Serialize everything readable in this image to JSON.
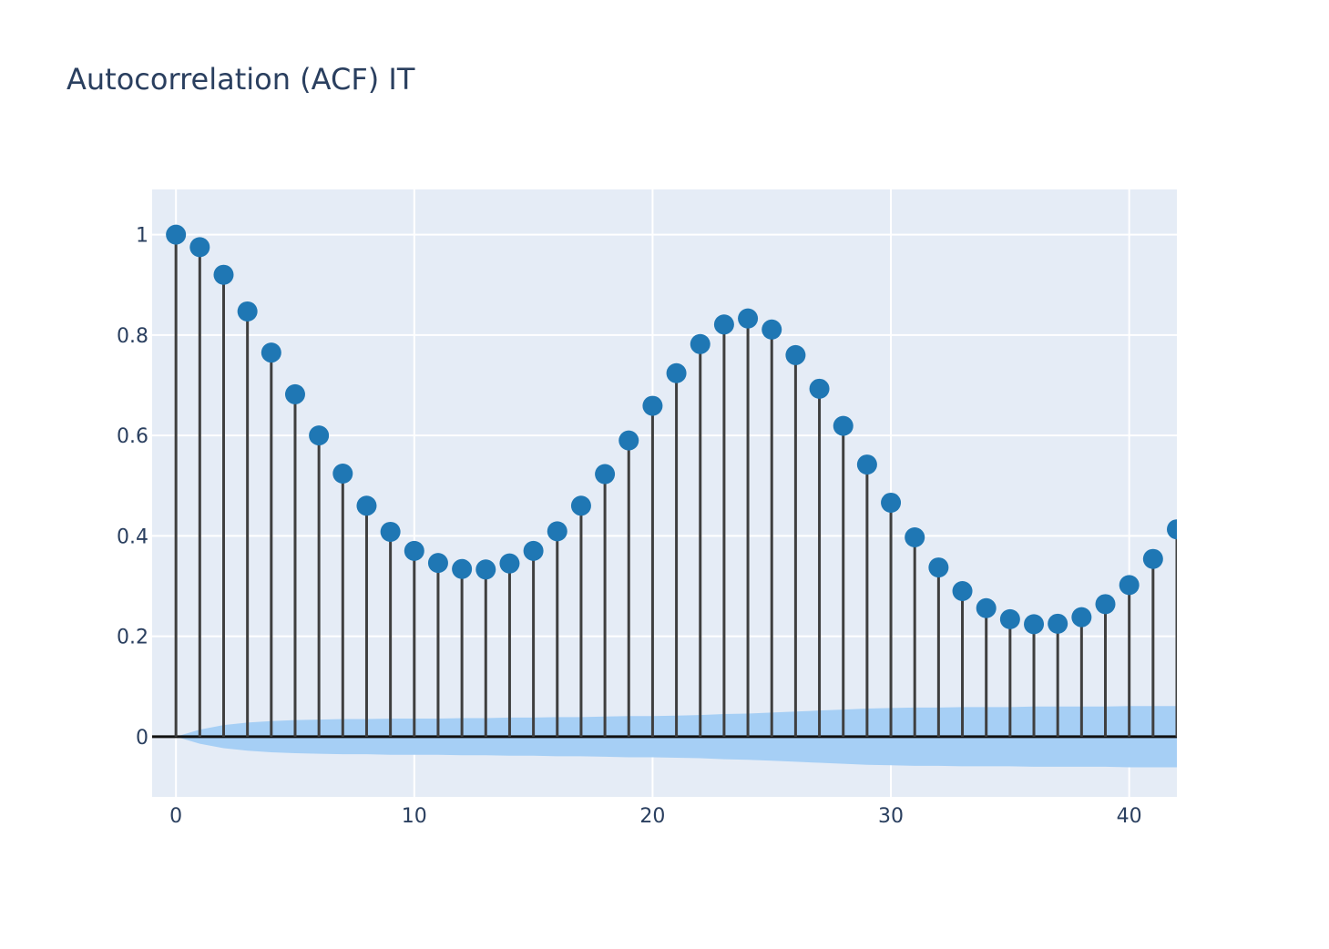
{
  "chart_data": {
    "type": "scatter",
    "title": "Autocorrelation (ACF) IT",
    "xlabel": "",
    "ylabel": "",
    "xlim": [
      -1,
      42
    ],
    "ylim": [
      -0.12,
      1.09
    ],
    "x_ticks": [
      0,
      10,
      20,
      30,
      40
    ],
    "y_ticks": [
      0,
      0.2,
      0.4,
      0.6,
      0.8,
      1
    ],
    "grid": true,
    "legend": "none",
    "lags": [
      0,
      1,
      2,
      3,
      4,
      5,
      6,
      7,
      8,
      9,
      10,
      11,
      12,
      13,
      14,
      15,
      16,
      17,
      18,
      19,
      20,
      21,
      22,
      23,
      24,
      25,
      26,
      27,
      28,
      29,
      30,
      31,
      32,
      33,
      34,
      35,
      36,
      37,
      38,
      39,
      40,
      41,
      42
    ],
    "acf": [
      1.0,
      0.975,
      0.92,
      0.847,
      0.765,
      0.682,
      0.6,
      0.524,
      0.46,
      0.408,
      0.37,
      0.346,
      0.334,
      0.333,
      0.345,
      0.37,
      0.409,
      0.46,
      0.523,
      0.59,
      0.659,
      0.724,
      0.782,
      0.821,
      0.833,
      0.811,
      0.76,
      0.693,
      0.619,
      0.542,
      0.466,
      0.397,
      0.337,
      0.29,
      0.256,
      0.234,
      0.224,
      0.225,
      0.238,
      0.264,
      0.302,
      0.354,
      0.413
    ],
    "confidence_band": [
      0.0,
      0.014,
      0.023,
      0.028,
      0.031,
      0.033,
      0.034,
      0.035,
      0.035,
      0.036,
      0.036,
      0.036,
      0.037,
      0.037,
      0.038,
      0.038,
      0.039,
      0.039,
      0.04,
      0.041,
      0.041,
      0.042,
      0.043,
      0.045,
      0.046,
      0.048,
      0.05,
      0.052,
      0.054,
      0.056,
      0.057,
      0.058,
      0.058,
      0.059,
      0.059,
      0.059,
      0.06,
      0.06,
      0.06,
      0.06,
      0.061,
      0.061,
      0.061
    ],
    "colors": {
      "marker": "#1f77b4",
      "stem": "#3f3f3f",
      "band": "#a6cff5",
      "zero_line": "#111111",
      "plot_bg": "#e5ecf6",
      "grid": "#ffffff"
    }
  }
}
